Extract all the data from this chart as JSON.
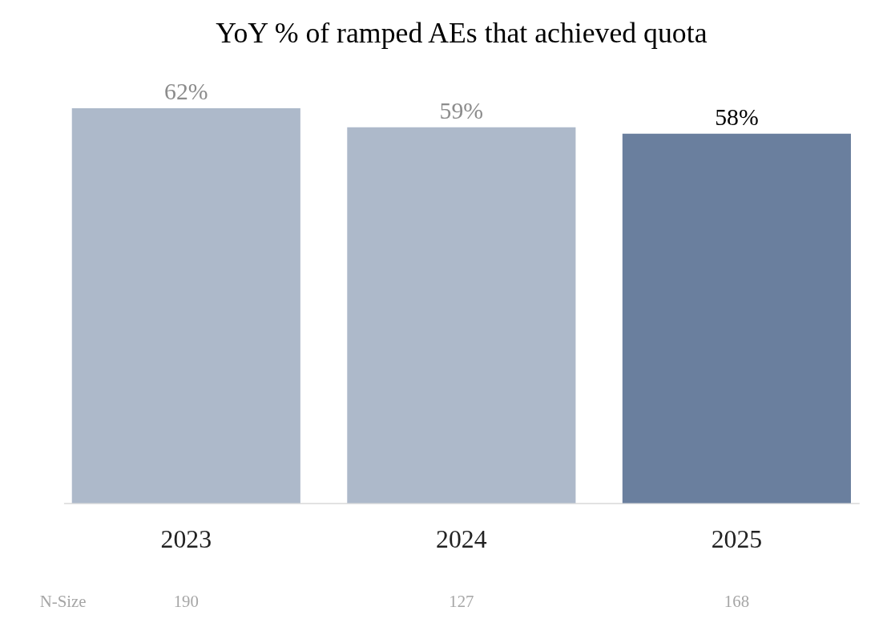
{
  "chart_data": {
    "type": "bar",
    "title": "YoY % of ramped AEs that achieved quota",
    "categories": [
      "2023",
      "2024",
      "2025"
    ],
    "values": [
      62,
      59,
      58
    ],
    "colors": [
      "#adb9ca",
      "#adb9ca",
      "#6a7f9e"
    ],
    "value_labels": [
      "62%",
      "59%",
      "58%"
    ],
    "tick_labels": "x",
    "grid": false,
    "annotations": [
      "N-Size",
      "190",
      "127",
      "168"
    ]
  }
}
